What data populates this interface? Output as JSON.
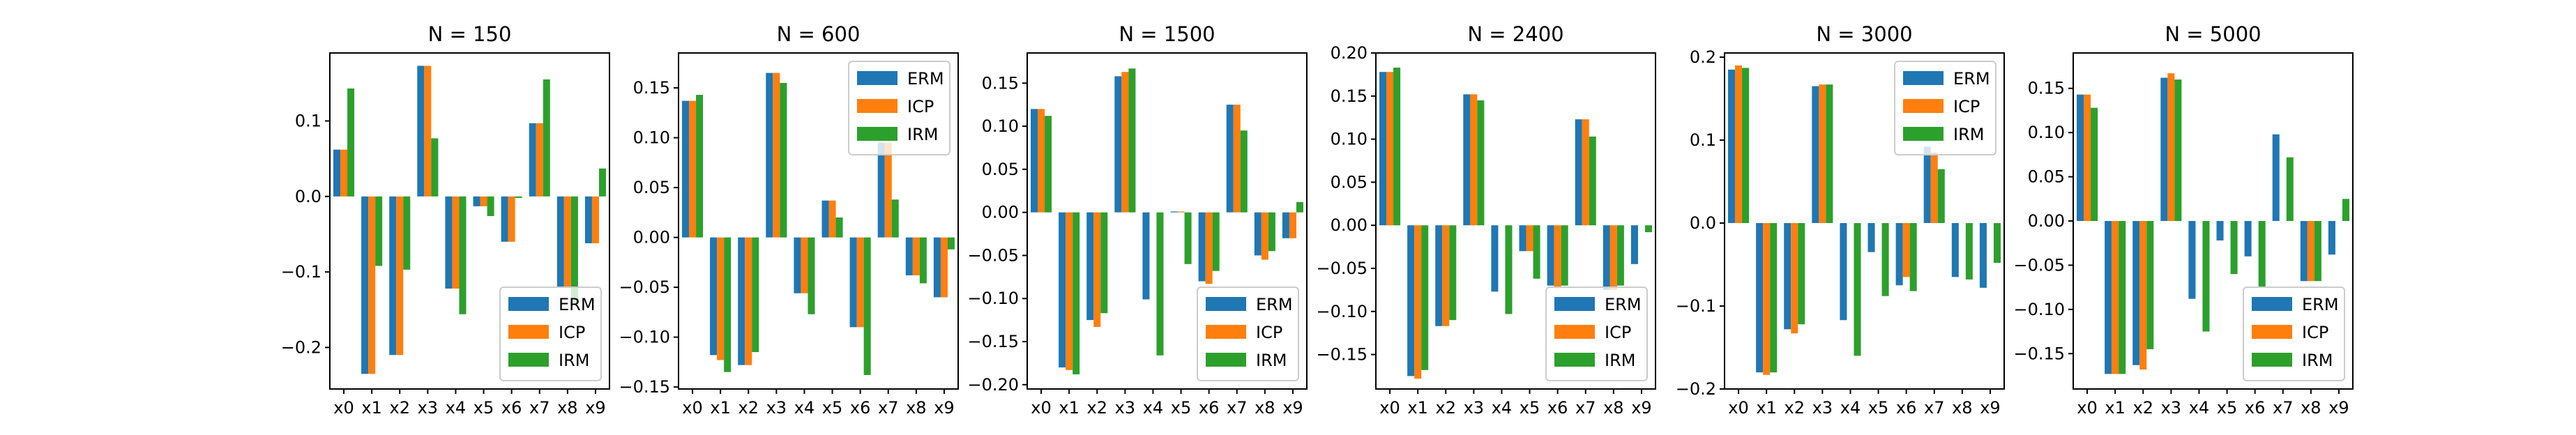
{
  "figure": {},
  "chart_data": [
    {
      "type": "bar",
      "title": "N = 150",
      "categories": [
        "x0",
        "x1",
        "x2",
        "x3",
        "x4",
        "x5",
        "x6",
        "x7",
        "x8",
        "x9"
      ],
      "ylim": [
        -0.255,
        0.19
      ],
      "yticks": [
        -0.2,
        -0.1,
        0.0,
        0.1
      ],
      "ytick_labels": [
        "−0.2",
        "−0.1",
        "0.0",
        "0.1"
      ],
      "legend_position": "lower-right",
      "series": [
        {
          "name": "ERM",
          "color": "#1f77b4",
          "values": [
            0.062,
            -0.235,
            -0.21,
            0.173,
            -0.122,
            -0.013,
            -0.06,
            0.097,
            -0.12,
            -0.062
          ]
        },
        {
          "name": "ICP",
          "color": "#ff7f0e",
          "values": [
            0.062,
            -0.235,
            -0.21,
            0.173,
            -0.122,
            -0.013,
            -0.06,
            0.097,
            -0.12,
            -0.062
          ]
        },
        {
          "name": "IRM",
          "color": "#2ca02c",
          "values": [
            0.143,
            -0.092,
            -0.097,
            0.077,
            -0.156,
            -0.026,
            -0.002,
            0.155,
            -0.142,
            0.037
          ]
        }
      ]
    },
    {
      "type": "bar",
      "title": "N = 600",
      "categories": [
        "x0",
        "x1",
        "x2",
        "x3",
        "x4",
        "x5",
        "x6",
        "x7",
        "x8",
        "x9"
      ],
      "ylim": [
        -0.152,
        0.185
      ],
      "yticks": [
        -0.15,
        -0.1,
        -0.05,
        0.0,
        0.05,
        0.1,
        0.15
      ],
      "ytick_labels": [
        "−0.15",
        "−0.10",
        "−0.05",
        "0.00",
        "0.05",
        "0.10",
        "0.15"
      ],
      "legend_position": "upper-right",
      "series": [
        {
          "name": "ERM",
          "color": "#1f77b4",
          "values": [
            0.137,
            -0.118,
            -0.128,
            0.165,
            -0.056,
            0.037,
            -0.09,
            0.095,
            -0.038,
            -0.06
          ]
        },
        {
          "name": "ICP",
          "color": "#ff7f0e",
          "values": [
            0.137,
            -0.123,
            -0.128,
            0.165,
            -0.056,
            0.037,
            -0.09,
            0.095,
            -0.038,
            -0.06
          ]
        },
        {
          "name": "IRM",
          "color": "#2ca02c",
          "values": [
            0.143,
            -0.135,
            -0.115,
            0.155,
            -0.077,
            0.02,
            -0.138,
            0.038,
            -0.046,
            -0.012
          ]
        }
      ]
    },
    {
      "type": "bar",
      "title": "N = 1500",
      "categories": [
        "x0",
        "x1",
        "x2",
        "x3",
        "x4",
        "x5",
        "x6",
        "x7",
        "x8",
        "x9"
      ],
      "ylim": [
        -0.205,
        0.185
      ],
      "yticks": [
        -0.2,
        -0.15,
        -0.1,
        -0.05,
        0.0,
        0.05,
        0.1,
        0.15
      ],
      "ytick_labels": [
        "−0.20",
        "−0.15",
        "−0.10",
        "−0.05",
        "0.00",
        "0.05",
        "0.10",
        "0.15"
      ],
      "legend_position": "lower-right",
      "series": [
        {
          "name": "ERM",
          "color": "#1f77b4",
          "values": [
            0.12,
            -0.18,
            -0.125,
            0.158,
            -0.101,
            0.001,
            -0.08,
            0.125,
            -0.05,
            -0.03
          ]
        },
        {
          "name": "ICP",
          "color": "#ff7f0e",
          "values": [
            0.12,
            -0.183,
            -0.133,
            0.163,
            0.0,
            0.001,
            -0.083,
            0.125,
            -0.055,
            -0.03
          ]
        },
        {
          "name": "IRM",
          "color": "#2ca02c",
          "values": [
            0.112,
            -0.188,
            -0.117,
            0.167,
            -0.166,
            -0.06,
            -0.068,
            0.095,
            -0.045,
            0.012
          ]
        }
      ]
    },
    {
      "type": "bar",
      "title": "N = 2400",
      "categories": [
        "x0",
        "x1",
        "x2",
        "x3",
        "x4",
        "x5",
        "x6",
        "x7",
        "x8",
        "x9"
      ],
      "ylim": [
        -0.19,
        0.2
      ],
      "yticks": [
        -0.15,
        -0.1,
        -0.05,
        0.0,
        0.05,
        0.1,
        0.15,
        0.2
      ],
      "ytick_labels": [
        "−0.15",
        "−0.10",
        "−0.05",
        "0.00",
        "0.05",
        "0.10",
        "0.15",
        "0.20"
      ],
      "legend_position": "lower-right",
      "series": [
        {
          "name": "ERM",
          "color": "#1f77b4",
          "values": [
            0.178,
            -0.175,
            -0.117,
            0.152,
            -0.077,
            -0.03,
            -0.07,
            0.123,
            -0.075,
            -0.045
          ]
        },
        {
          "name": "ICP",
          "color": "#ff7f0e",
          "values": [
            0.178,
            -0.178,
            -0.117,
            0.152,
            0.0,
            -0.03,
            -0.073,
            0.123,
            -0.075,
            0.0
          ]
        },
        {
          "name": "IRM",
          "color": "#2ca02c",
          "values": [
            0.183,
            -0.168,
            -0.11,
            0.145,
            -0.103,
            -0.062,
            -0.07,
            0.103,
            -0.07,
            -0.008
          ]
        }
      ]
    },
    {
      "type": "bar",
      "title": "N = 3000",
      "categories": [
        "x0",
        "x1",
        "x2",
        "x3",
        "x4",
        "x5",
        "x6",
        "x7",
        "x8",
        "x9"
      ],
      "ylim": [
        -0.2,
        0.205
      ],
      "yticks": [
        -0.2,
        -0.1,
        0.0,
        0.1,
        0.2
      ],
      "ytick_labels": [
        "−0.2",
        "−0.1",
        "0.0",
        "0.1",
        "0.2"
      ],
      "legend_position": "upper-right",
      "series": [
        {
          "name": "ERM",
          "color": "#1f77b4",
          "values": [
            0.185,
            -0.18,
            -0.128,
            0.165,
            -0.117,
            -0.035,
            -0.075,
            0.092,
            -0.065,
            -0.078
          ]
        },
        {
          "name": "ICP",
          "color": "#ff7f0e",
          "values": [
            0.19,
            -0.183,
            -0.133,
            0.167,
            0.0,
            0.0,
            -0.065,
            0.085,
            0.0,
            0.0
          ]
        },
        {
          "name": "IRM",
          "color": "#2ca02c",
          "values": [
            0.187,
            -0.18,
            -0.122,
            0.167,
            -0.16,
            -0.088,
            -0.082,
            0.065,
            -0.068,
            -0.048
          ]
        }
      ]
    },
    {
      "type": "bar",
      "title": "N = 5000",
      "categories": [
        "x0",
        "x1",
        "x2",
        "x3",
        "x4",
        "x5",
        "x6",
        "x7",
        "x8",
        "x9"
      ],
      "ylim": [
        -0.19,
        0.19
      ],
      "yticks": [
        -0.15,
        -0.1,
        -0.05,
        0.0,
        0.05,
        0.1,
        0.15
      ],
      "ytick_labels": [
        "−0.15",
        "−0.10",
        "−0.05",
        "0.00",
        "0.05",
        "0.10",
        "0.15"
      ],
      "legend_position": "lower-right",
      "series": [
        {
          "name": "ERM",
          "color": "#1f77b4",
          "values": [
            0.143,
            -0.173,
            -0.163,
            0.162,
            -0.088,
            -0.022,
            -0.04,
            0.098,
            -0.068,
            -0.038
          ]
        },
        {
          "name": "ICP",
          "color": "#ff7f0e",
          "values": [
            0.143,
            -0.173,
            -0.168,
            0.167,
            0.0,
            0.0,
            0.0,
            0.0,
            -0.068,
            0.0
          ]
        },
        {
          "name": "IRM",
          "color": "#2ca02c",
          "values": [
            0.128,
            -0.173,
            -0.145,
            0.16,
            -0.125,
            -0.06,
            -0.075,
            0.072,
            -0.068,
            0.025
          ]
        }
      ]
    }
  ]
}
